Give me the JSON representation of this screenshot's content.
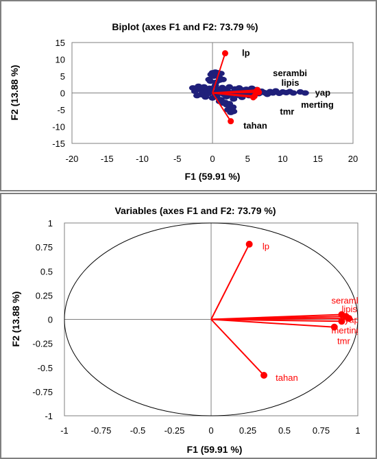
{
  "chart_data": [
    {
      "type": "scatter",
      "title": "Biplot (axes F1 and F2: 73.79 %)",
      "xlabel": "F1 (59.91 %)",
      "ylabel": "F2 (13.88 %)",
      "xlim": [
        -20,
        20
      ],
      "ylim": [
        -15,
        15
      ],
      "x_ticks": [
        "-20",
        "-15",
        "-10",
        "-5",
        "0",
        "5",
        "10",
        "15",
        "20"
      ],
      "y_ticks": [
        "15",
        "10",
        "5",
        "0",
        "-5",
        "-10",
        "-15"
      ],
      "grid": false,
      "observations": {
        "color": "#1f1f7a",
        "points": [
          [
            -2.8,
            1.5
          ],
          [
            -2.5,
            0.5
          ],
          [
            -2.2,
            -0.8
          ],
          [
            -2.0,
            2.0
          ],
          [
            -1.8,
            1.0
          ],
          [
            -1.6,
            -0.5
          ],
          [
            -1.4,
            0.2
          ],
          [
            -1.2,
            1.8
          ],
          [
            -1.0,
            -1.2
          ],
          [
            -0.8,
            0.8
          ],
          [
            -0.6,
            -0.2
          ],
          [
            -0.4,
            1.4
          ],
          [
            -0.2,
            0.5
          ],
          [
            0.0,
            -1.5
          ],
          [
            0.2,
            0.0
          ],
          [
            0.4,
            2.2
          ],
          [
            0.6,
            -0.9
          ],
          [
            0.8,
            1.0
          ],
          [
            1.0,
            0.3
          ],
          [
            1.2,
            -2.0
          ],
          [
            1.4,
            1.6
          ],
          [
            1.6,
            -0.4
          ],
          [
            1.8,
            0.9
          ],
          [
            2.0,
            -1.1
          ],
          [
            2.2,
            0.4
          ],
          [
            2.4,
            1.8
          ],
          [
            2.6,
            -0.6
          ],
          [
            2.8,
            0.1
          ],
          [
            3.0,
            -1.8
          ],
          [
            3.2,
            1.2
          ],
          [
            3.4,
            0.6
          ],
          [
            3.6,
            -0.7
          ],
          [
            3.8,
            1.5
          ],
          [
            4.0,
            0.2
          ],
          [
            4.2,
            -1.3
          ],
          [
            4.4,
            0.9
          ],
          [
            4.6,
            -0.3
          ],
          [
            4.8,
            1.1
          ],
          [
            5.0,
            0.0
          ],
          [
            5.2,
            -0.8
          ],
          [
            5.4,
            0.7
          ],
          [
            5.6,
            1.4
          ],
          [
            5.8,
            -0.5
          ],
          [
            6.0,
            0.3
          ],
          [
            6.3,
            1.0
          ],
          [
            6.6,
            -0.2
          ],
          [
            7.0,
            0.5
          ],
          [
            7.4,
            0.1
          ],
          [
            7.8,
            -0.4
          ],
          [
            8.2,
            0.4
          ],
          [
            8.6,
            0.0
          ],
          [
            9.0,
            0.6
          ],
          [
            9.5,
            -0.1
          ],
          [
            10.0,
            0.3
          ],
          [
            10.5,
            0.1
          ],
          [
            11.0,
            0.4
          ],
          [
            11.5,
            0.0
          ],
          [
            12.5,
            0.3
          ],
          [
            13.2,
            0.0
          ],
          [
            -0.5,
            4.0
          ],
          [
            -0.2,
            5.5
          ],
          [
            0.0,
            6.0
          ],
          [
            0.2,
            5.0
          ],
          [
            0.4,
            6.2
          ],
          [
            0.6,
            5.4
          ],
          [
            0.8,
            6.0
          ],
          [
            1.0,
            4.5
          ],
          [
            1.2,
            5.8
          ],
          [
            -0.3,
            3.5
          ],
          [
            0.5,
            3.2
          ],
          [
            1.5,
            4.0
          ],
          [
            1.0,
            3.8
          ],
          [
            1.0,
            -2.5
          ],
          [
            1.5,
            -3.0
          ],
          [
            2.0,
            -3.5
          ],
          [
            2.5,
            -4.0
          ],
          [
            2.8,
            -4.8
          ],
          [
            3.0,
            -5.5
          ],
          [
            2.2,
            -5.0
          ],
          [
            2.6,
            -5.8
          ],
          [
            2.9,
            -4.2
          ],
          [
            1.8,
            -2.8
          ],
          [
            2.4,
            -3.2
          ]
        ]
      },
      "variables": [
        {
          "label": "lp",
          "x": 1.8,
          "y": 11.8
        },
        {
          "label": "tahan",
          "x": 2.6,
          "y": -8.4
        },
        {
          "label": "serambi",
          "x": 6.4,
          "y": 0.9
        },
        {
          "label": "lipis",
          "x": 6.2,
          "y": 0.4
        },
        {
          "label": "yap",
          "x": 6.6,
          "y": 0.2
        },
        {
          "label": "merting",
          "x": 6.0,
          "y": -0.9
        },
        {
          "label": "tmr",
          "x": 5.8,
          "y": -1.3
        }
      ],
      "variable_labels": [
        {
          "text": "lp",
          "x": 4.2,
          "y": 12.0
        },
        {
          "text": "serambi",
          "x": 8.6,
          "y": 6.0
        },
        {
          "text": "lipis",
          "x": 9.8,
          "y": 3.2
        },
        {
          "text": "yap",
          "x": 14.6,
          "y": 0.2
        },
        {
          "text": "merting",
          "x": 12.6,
          "y": -3.4
        },
        {
          "text": "tmr",
          "x": 9.6,
          "y": -5.4
        },
        {
          "text": "tahan",
          "x": 4.4,
          "y": -9.6
        }
      ],
      "variable_color": "#ff0000"
    },
    {
      "type": "scatter",
      "title": "Variables (axes F1 and F2: 73.79 %)",
      "xlabel": "F1 (59.91 %)",
      "ylabel": "F2 (13.88 %)",
      "xlim": [
        -1,
        1
      ],
      "ylim": [
        -1,
        1
      ],
      "x_ticks": [
        "-1",
        "-0.75",
        "-0.5",
        "-0.25",
        "0",
        "0.25",
        "0.5",
        "0.75",
        "1"
      ],
      "y_ticks": [
        "1",
        "0.75",
        "0.5",
        "0.25",
        "0",
        "-0.25",
        "-0.5",
        "-0.75",
        "-1"
      ],
      "grid": false,
      "correlation_circle": true,
      "variables": [
        {
          "label": "lp",
          "x": 0.26,
          "y": 0.78
        },
        {
          "label": "serambi",
          "x": 0.89,
          "y": 0.05
        },
        {
          "label": "lipis",
          "x": 0.92,
          "y": 0.03
        },
        {
          "label": "yap",
          "x": 0.94,
          "y": 0.01
        },
        {
          "label": "merting",
          "x": 0.89,
          "y": -0.02
        },
        {
          "label": "tmr",
          "x": 0.84,
          "y": -0.08
        },
        {
          "label": "tahan",
          "x": 0.36,
          "y": -0.58
        }
      ],
      "variable_labels": [
        {
          "text": "lp",
          "x": 0.35,
          "y": 0.76
        },
        {
          "text": "tahan",
          "x": 0.44,
          "y": -0.6
        },
        {
          "text": "serambi",
          "x": 0.82,
          "y": 0.2
        },
        {
          "text": "lipis",
          "x": 0.89,
          "y": 0.11
        },
        {
          "text": "yap",
          "x": 0.91,
          "y": 0.0
        },
        {
          "text": "merting",
          "x": 0.82,
          "y": -0.11
        },
        {
          "text": "tmr",
          "x": 0.86,
          "y": -0.22
        }
      ],
      "variable_color": "#ff0000"
    }
  ]
}
